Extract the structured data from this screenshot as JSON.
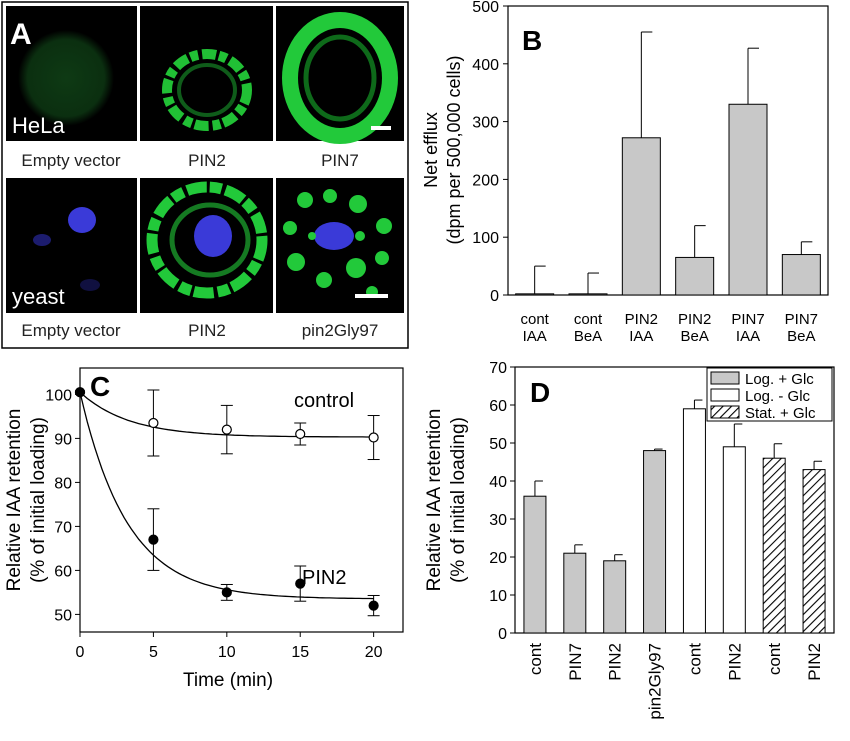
{
  "panel_a": {
    "letter": "A",
    "hela_label": "HeLa",
    "yeast_label": "yeast",
    "hela_captions": [
      "Empty vector",
      "PIN2",
      "PIN7"
    ],
    "yeast_captions": [
      "Empty vector",
      "PIN2",
      "pin2Gly97"
    ],
    "colors": {
      "gfp": "#22c93a",
      "dapi": "#3a3ad8",
      "background": "#000000"
    }
  },
  "chart_data": [
    {
      "id": "B",
      "type": "bar",
      "letter": "B",
      "categories": [
        [
          "cont",
          "IAA"
        ],
        [
          "cont",
          "BeA"
        ],
        [
          "PIN2",
          "IAA"
        ],
        [
          "PIN2",
          "BeA"
        ],
        [
          "PIN7",
          "IAA"
        ],
        [
          "PIN7",
          "BeA"
        ]
      ],
      "values": [
        2,
        2,
        272,
        65,
        330,
        70
      ],
      "errors": [
        48,
        36,
        183,
        55,
        97,
        22
      ],
      "ylabel_lines": [
        "Net efflux",
        "(dpm per 500,000 cells)"
      ],
      "ylim": [
        0,
        500
      ],
      "yticks": [
        0,
        100,
        200,
        300,
        400,
        500
      ],
      "bar_color": "#c8c8c8"
    },
    {
      "id": "C",
      "type": "scatter",
      "letter": "C",
      "xlabel": "Time  (min)",
      "ylabel_lines": [
        "Relative IAA retention",
        "(% of initial loading)"
      ],
      "xlim": [
        0,
        22
      ],
      "ylim": [
        46,
        106
      ],
      "xticks": [
        0,
        5,
        10,
        15,
        20
      ],
      "yticks": [
        50,
        60,
        70,
        80,
        90,
        100
      ],
      "series": [
        {
          "name": "control",
          "marker": "open",
          "x": [
            0,
            5,
            10,
            15,
            20
          ],
          "y": [
            100.5,
            93.5,
            92,
            91,
            90.2
          ],
          "err": [
            0,
            7.5,
            5.5,
            2.5,
            5
          ],
          "fit": {
            "plateau": 90.3,
            "rate": 0.3
          }
        },
        {
          "name": "PIN2",
          "marker": "filled",
          "x": [
            0,
            5,
            10,
            15,
            20
          ],
          "y": [
            100.5,
            67,
            55,
            57,
            52
          ],
          "err": [
            0,
            7,
            1.8,
            4,
            2.3
          ],
          "fit": {
            "plateau": 53.5,
            "rate": 0.31
          }
        }
      ]
    },
    {
      "id": "D",
      "type": "bar",
      "letter": "D",
      "categories": [
        "cont",
        "PIN7",
        "PIN2",
        "pin2Gly97",
        "cont",
        "PIN2",
        "cont",
        "PIN2"
      ],
      "values": [
        36,
        21,
        19,
        48,
        59,
        49,
        46,
        43
      ],
      "errors": [
        4,
        2.2,
        1.6,
        0.4,
        2.3,
        6,
        3.8,
        2.2
      ],
      "groups": [
        0,
        0,
        0,
        0,
        1,
        1,
        2,
        2
      ],
      "legend": [
        "Log. + Glc",
        "Log.  - Glc",
        "Stat. + Glc"
      ],
      "ylabel_lines": [
        "Relative IAA retention",
        "(% of initial loading)"
      ],
      "ylim": [
        0,
        70
      ],
      "yticks": [
        0,
        10,
        20,
        30,
        40,
        50,
        60,
        70
      ],
      "legend_position": "top-right"
    }
  ]
}
